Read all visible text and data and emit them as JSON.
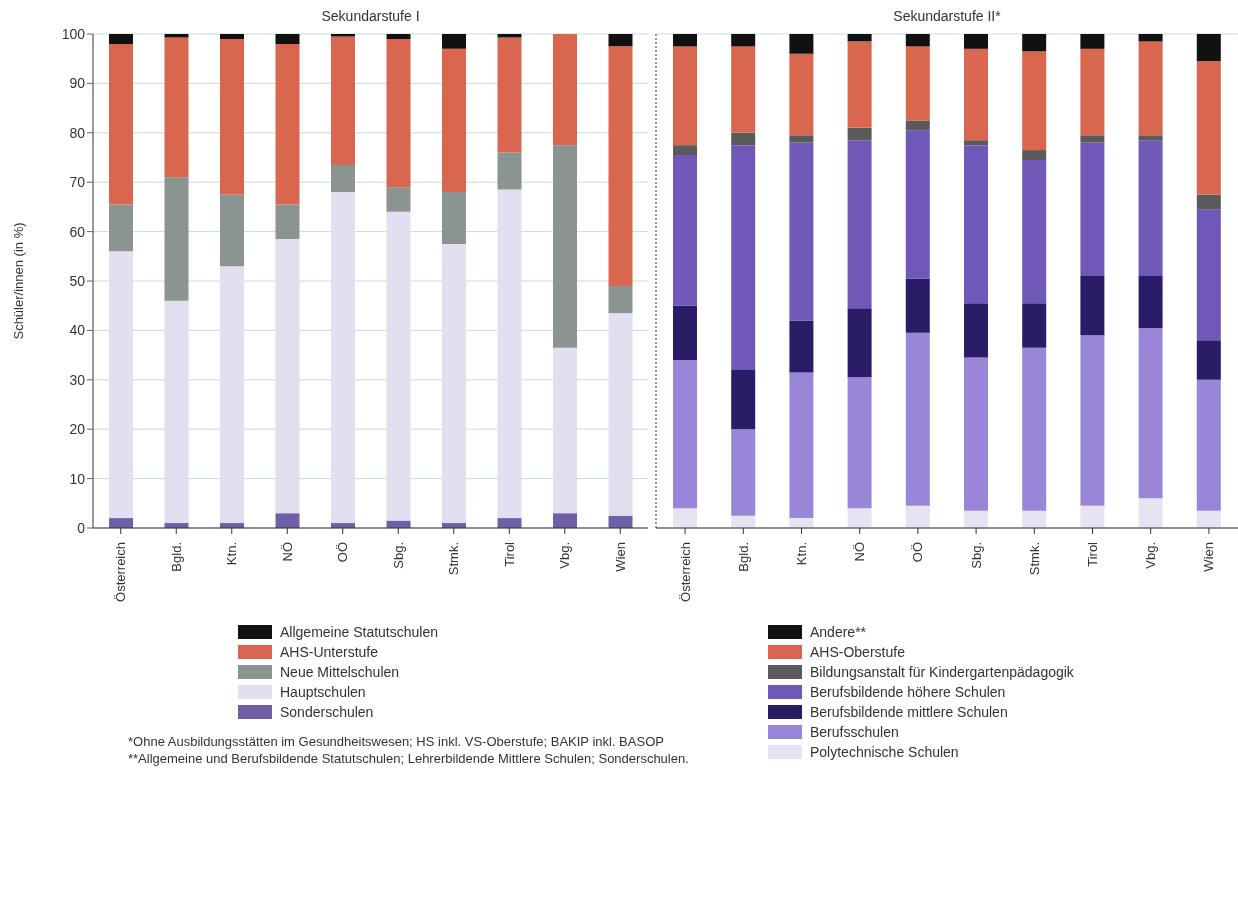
{
  "chart_data": [
    {
      "type": "bar",
      "title": "Sekundarstufe I",
      "ylabel": "Schüler/innen (in %)",
      "categories": [
        "Österreich",
        "Bgld.",
        "Ktn.",
        "NÖ",
        "OÖ",
        "Sbg.",
        "Stmk.",
        "Tirol",
        "Vbg.",
        "Wien"
      ],
      "stacked": true,
      "ylim": [
        0,
        100
      ],
      "yticks": [
        0,
        10,
        20,
        30,
        40,
        50,
        60,
        70,
        80,
        90,
        100
      ],
      "grid": "y",
      "legend": "bottom",
      "series": [
        {
          "name": "Sonderschulen",
          "color": "#6f5fa8",
          "values": [
            2,
            1,
            1,
            3,
            1,
            1.5,
            1,
            2,
            3,
            2.5
          ]
        },
        {
          "name": "Hauptschulen",
          "color": "#e2dff0",
          "values": [
            54,
            45,
            52,
            55.5,
            67,
            62.5,
            56.5,
            66.5,
            33.5,
            41
          ]
        },
        {
          "name": "Neue Mittelschulen",
          "color": "#8a9490",
          "values": [
            9.5,
            25,
            14.5,
            7,
            5.5,
            5,
            10.5,
            7.5,
            41,
            5.5
          ]
        },
        {
          "name": "AHS-Unterstufe",
          "color": "#d9664f",
          "values": [
            32.5,
            28.3,
            31.5,
            32.5,
            26,
            30,
            29,
            23.3,
            22.5,
            48.5
          ]
        },
        {
          "name": "Allgemeine Statutschulen",
          "color": "#111111",
          "values": [
            2,
            0.7,
            1,
            2,
            0.5,
            1,
            3,
            0.7,
            0,
            2.5
          ]
        }
      ],
      "annotations": [
        "*Ohne Ausbildungsstätten im Gesundheitswesen; HS inkl. VS-Oberstufe; BAKIP inkl. BASOP",
        "**Allgemeine und Berufsbildende Statutschulen; Lehrerbildende Mittlere Schulen; Sonderschulen."
      ]
    },
    {
      "type": "bar",
      "title": "Sekundarstufe II*",
      "categories": [
        "Österreich",
        "Bgld.",
        "Ktn.",
        "NÖ",
        "OÖ",
        "Sbg.",
        "Stmk.",
        "Tirol",
        "Vbg.",
        "Wien"
      ],
      "stacked": true,
      "ylim": [
        0,
        100
      ],
      "yticks": [
        0,
        10,
        20,
        30,
        40,
        50,
        60,
        70,
        80,
        90,
        100
      ],
      "tick_labels": "x",
      "grid": "y",
      "legend": "bottom",
      "series": [
        {
          "name": "Polytechnische Schulen",
          "color": "#e6e3f3",
          "values": [
            4,
            2.5,
            2,
            4,
            4.5,
            3.5,
            3.5,
            4.5,
            6,
            3.5
          ]
        },
        {
          "name": "Berufsschulen",
          "color": "#9a86d8",
          "values": [
            30,
            17.5,
            29.5,
            26.5,
            35,
            31,
            33,
            34.5,
            34.5,
            26.5
          ]
        },
        {
          "name": "Berufsbildende mittlere Schulen",
          "color": "#2a1c66",
          "values": [
            11,
            12,
            10.5,
            14,
            11,
            11,
            9,
            12,
            10.5,
            8
          ]
        },
        {
          "name": "Berufsbildende höhere Schulen",
          "color": "#6f58b8",
          "values": [
            30.5,
            45.5,
            36,
            34,
            30,
            32,
            29,
            27,
            27.5,
            26.5
          ]
        },
        {
          "name": "Bildungsanstalt für Kindergartenpädagogik",
          "color": "#5a5a5a",
          "values": [
            2,
            2.5,
            1.5,
            2.5,
            2,
            1,
            2,
            1.5,
            1,
            3
          ]
        },
        {
          "name": "AHS-Oberstufe",
          "color": "#d9664f",
          "values": [
            20,
            17.5,
            16.5,
            17.5,
            15,
            18.5,
            20,
            17.5,
            19,
            27
          ]
        },
        {
          "name": "Andere**",
          "color": "#111111",
          "values": [
            2.5,
            2.5,
            4,
            1.5,
            2.5,
            3,
            3.5,
            3,
            1.5,
            5.5
          ]
        }
      ]
    }
  ]
}
